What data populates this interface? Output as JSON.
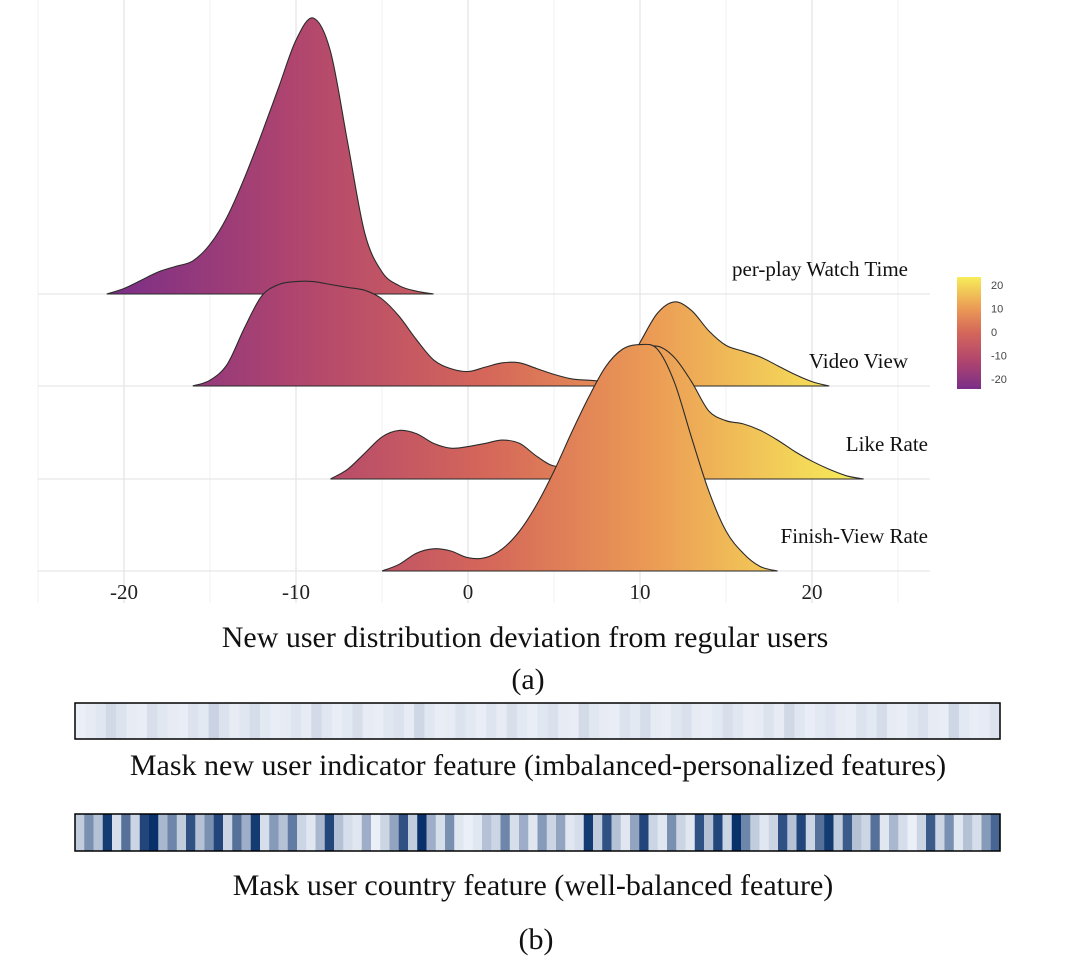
{
  "chart_data": [
    {
      "type": "ridgeline",
      "xlabel": "New user distribution deviation from regular users",
      "panel_label": "(a)",
      "x_ticks": [
        -20,
        -10,
        0,
        10,
        20
      ],
      "xlim": [
        -25,
        26
      ],
      "grid": true,
      "colormap": {
        "name": "plasma-like",
        "colors": [
          "#7a2e88",
          "#b0456e",
          "#d4665a",
          "#eb9a55",
          "#f7ed5a"
        ],
        "ticks": [
          20,
          10,
          0,
          -10,
          -20
        ],
        "range": [
          -22,
          23
        ],
        "placement": "right"
      },
      "series": [
        {
          "name": "per-play Watch Time",
          "x_range": [
            -21,
            -2
          ],
          "points": [
            [
              -21,
              0.0
            ],
            [
              -20,
              0.02
            ],
            [
              -19,
              0.05
            ],
            [
              -18,
              0.08
            ],
            [
              -17,
              0.1
            ],
            [
              -16,
              0.12
            ],
            [
              -15,
              0.18
            ],
            [
              -14,
              0.28
            ],
            [
              -13,
              0.42
            ],
            [
              -12,
              0.58
            ],
            [
              -11,
              0.75
            ],
            [
              -10,
              0.92
            ],
            [
              -9,
              1.0
            ],
            [
              -8,
              0.88
            ],
            [
              -7,
              0.55
            ],
            [
              -6,
              0.22
            ],
            [
              -5,
              0.08
            ],
            [
              -4,
              0.03
            ],
            [
              -3,
              0.01
            ],
            [
              -2,
              0.0
            ]
          ]
        },
        {
          "name": "Video View",
          "x_range": [
            -16,
            21
          ],
          "points": [
            [
              -16,
              0.0
            ],
            [
              -15,
              0.04
            ],
            [
              -14,
              0.15
            ],
            [
              -13,
              0.4
            ],
            [
              -12,
              0.62
            ],
            [
              -11,
              0.7
            ],
            [
              -10,
              0.72
            ],
            [
              -9,
              0.72
            ],
            [
              -8,
              0.7
            ],
            [
              -7,
              0.68
            ],
            [
              -6,
              0.66
            ],
            [
              -5,
              0.6
            ],
            [
              -4,
              0.48
            ],
            [
              -3,
              0.32
            ],
            [
              -2,
              0.18
            ],
            [
              -1,
              0.12
            ],
            [
              0,
              0.1
            ],
            [
              1,
              0.13
            ],
            [
              2,
              0.16
            ],
            [
              3,
              0.16
            ],
            [
              4,
              0.12
            ],
            [
              5,
              0.08
            ],
            [
              6,
              0.05
            ],
            [
              7,
              0.04
            ],
            [
              8,
              0.04
            ],
            [
              9,
              0.1
            ],
            [
              10,
              0.3
            ],
            [
              11,
              0.5
            ],
            [
              12,
              0.58
            ],
            [
              13,
              0.52
            ],
            [
              14,
              0.38
            ],
            [
              15,
              0.28
            ],
            [
              16,
              0.24
            ],
            [
              17,
              0.2
            ],
            [
              18,
              0.14
            ],
            [
              19,
              0.08
            ],
            [
              20,
              0.03
            ],
            [
              21,
              0.0
            ]
          ]
        },
        {
          "name": "Like Rate",
          "x_range": [
            -8,
            23
          ],
          "points": [
            [
              -8,
              0.0
            ],
            [
              -7,
              0.06
            ],
            [
              -6,
              0.16
            ],
            [
              -5,
              0.26
            ],
            [
              -4,
              0.3
            ],
            [
              -3,
              0.28
            ],
            [
              -2,
              0.22
            ],
            [
              -1,
              0.19
            ],
            [
              0,
              0.2
            ],
            [
              1,
              0.22
            ],
            [
              2,
              0.24
            ],
            [
              3,
              0.22
            ],
            [
              4,
              0.14
            ],
            [
              5,
              0.08
            ],
            [
              6,
              0.1
            ],
            [
              7,
              0.18
            ],
            [
              8,
              0.36
            ],
            [
              9,
              0.62
            ],
            [
              10,
              0.78
            ],
            [
              11,
              0.82
            ],
            [
              12,
              0.75
            ],
            [
              13,
              0.6
            ],
            [
              14,
              0.42
            ],
            [
              15,
              0.36
            ],
            [
              16,
              0.34
            ],
            [
              17,
              0.3
            ],
            [
              18,
              0.24
            ],
            [
              19,
              0.17
            ],
            [
              20,
              0.11
            ],
            [
              21,
              0.06
            ],
            [
              22,
              0.02
            ],
            [
              23,
              0.0
            ]
          ]
        },
        {
          "name": "Finish-View Rate",
          "x_range": [
            -5,
            18
          ],
          "points": [
            [
              -5,
              0.0
            ],
            [
              -4,
              0.03
            ],
            [
              -3,
              0.08
            ],
            [
              -2,
              0.1
            ],
            [
              -1,
              0.09
            ],
            [
              0,
              0.06
            ],
            [
              1,
              0.06
            ],
            [
              2,
              0.1
            ],
            [
              3,
              0.18
            ],
            [
              4,
              0.3
            ],
            [
              5,
              0.45
            ],
            [
              6,
              0.62
            ],
            [
              7,
              0.78
            ],
            [
              8,
              0.92
            ],
            [
              9,
              1.0
            ],
            [
              10,
              1.02
            ],
            [
              11,
              1.0
            ],
            [
              12,
              0.85
            ],
            [
              13,
              0.6
            ],
            [
              14,
              0.36
            ],
            [
              15,
              0.18
            ],
            [
              16,
              0.08
            ],
            [
              17,
              0.02
            ],
            [
              18,
              0.0
            ]
          ]
        }
      ]
    },
    {
      "type": "heatmap",
      "title": "Mask new user indicator feature (imbalanced-personalized features)",
      "colormap": [
        "#f4f7fd",
        "#08306b"
      ],
      "values": [
        0.04,
        0.06,
        0.08,
        0.15,
        0.1,
        0.06,
        0.05,
        0.12,
        0.08,
        0.06,
        0.05,
        0.1,
        0.07,
        0.18,
        0.1,
        0.06,
        0.08,
        0.13,
        0.07,
        0.05,
        0.06,
        0.09,
        0.06,
        0.14,
        0.08,
        0.05,
        0.07,
        0.12,
        0.06,
        0.05,
        0.08,
        0.1,
        0.06,
        0.16,
        0.08,
        0.05,
        0.06,
        0.1,
        0.07,
        0.05,
        0.09,
        0.06,
        0.12,
        0.07,
        0.05,
        0.08,
        0.11,
        0.06,
        0.05,
        0.14,
        0.08,
        0.06,
        0.05,
        0.1,
        0.07,
        0.13,
        0.06,
        0.05,
        0.08,
        0.11,
        0.06,
        0.05,
        0.07,
        0.12,
        0.08,
        0.05,
        0.06,
        0.1,
        0.06,
        0.15,
        0.08,
        0.05,
        0.07,
        0.09,
        0.06,
        0.05,
        0.1,
        0.07,
        0.13,
        0.06,
        0.05,
        0.08,
        0.11,
        0.06,
        0.05,
        0.16,
        0.07,
        0.05,
        0.06,
        0.1
      ]
    },
    {
      "type": "heatmap",
      "title": "Mask user country feature (well-balanced feature)",
      "panel_label": "(b)",
      "colormap": [
        "#f4f7fd",
        "#08306b"
      ],
      "values": [
        0.25,
        0.55,
        0.3,
        0.95,
        0.15,
        0.7,
        0.2,
        0.9,
        1.0,
        0.35,
        0.6,
        0.25,
        0.85,
        0.3,
        0.55,
        0.9,
        0.2,
        0.7,
        0.4,
        0.95,
        0.15,
        0.5,
        0.3,
        0.65,
        0.2,
        0.1,
        0.35,
        0.9,
        0.3,
        0.15,
        0.1,
        0.4,
        0.05,
        0.2,
        0.45,
        0.85,
        0.25,
        1.0,
        0.4,
        0.15,
        0.55,
        0.1,
        0.05,
        0.1,
        0.3,
        0.2,
        0.6,
        0.15,
        0.4,
        0.1,
        0.5,
        0.2,
        0.45,
        0.1,
        0.15,
        0.95,
        0.25,
        0.85,
        0.3,
        0.1,
        0.45,
        0.9,
        0.2,
        0.1,
        0.55,
        0.2,
        0.1,
        0.85,
        0.3,
        0.9,
        0.2,
        1.0,
        0.6,
        0.25,
        0.1,
        0.2,
        0.85,
        0.3,
        0.9,
        0.2,
        0.7,
        0.95,
        0.25,
        0.8,
        0.3,
        0.2,
        0.7,
        0.1,
        0.35,
        0.15,
        0.05,
        0.2,
        0.8,
        0.2,
        0.55,
        0.1,
        0.3,
        0.15,
        0.5,
        0.75
      ]
    }
  ]
}
